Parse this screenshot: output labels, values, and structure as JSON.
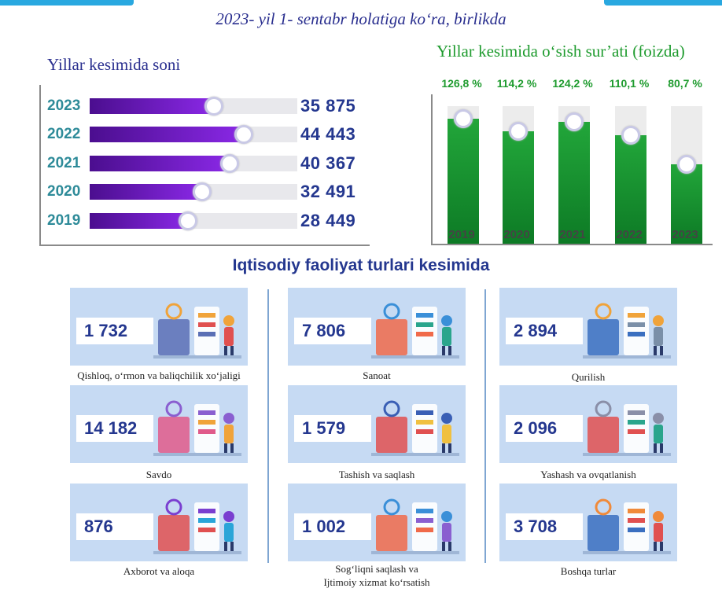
{
  "subtitle": "2023- yil 1- sentabr holatiga ko‘ra, birlikda",
  "colors": {
    "bar_fill": "#7a22d6",
    "growth_fill": "#129a2e",
    "title_blue": "#2a2f8f",
    "growth_title": "#1e9b2e",
    "tile_bg": "#c6daf3"
  },
  "chart_data": [
    {
      "type": "bar",
      "orientation": "horizontal",
      "title": "Yillar kesimida soni",
      "categories": [
        "2023",
        "2022",
        "2021",
        "2020",
        "2019"
      ],
      "values": [
        35875,
        44443,
        40367,
        32491,
        28449
      ],
      "value_labels": [
        "35 875",
        "44 443",
        "40 367",
        "32 491",
        "28 449"
      ]
    },
    {
      "type": "bar",
      "title": "Yillar kesimida o‘sish sur’ati (foizda)",
      "categories": [
        "2019",
        "2020",
        "2021",
        "2022",
        "2023"
      ],
      "values": [
        126.8,
        114.2,
        124.2,
        110.1,
        80.7
      ],
      "value_labels": [
        "126,8 %",
        "114,2 %",
        "124,2 %",
        "110,1 %",
        "80,7 %"
      ]
    }
  ],
  "sectors": {
    "title": "Iqtisodiy faoliyat turlari kesimida",
    "items": [
      {
        "value": "1 732",
        "label": "Qishloq, o‘rmon va baliqchilik xo‘jaligi",
        "icon": "agriculture-illustration"
      },
      {
        "value": "7 806",
        "label": "Sanoat",
        "icon": "industry-illustration"
      },
      {
        "value": "2 894",
        "label": "Qurilish",
        "icon": "construction-illustration"
      },
      {
        "value": "14 182",
        "label": "Savdo",
        "icon": "trade-illustration"
      },
      {
        "value": "1 579",
        "label": "Tashish va saqlash",
        "icon": "transport-illustration"
      },
      {
        "value": "2 096",
        "label": "Yashash va ovqatlanish",
        "icon": "hospitality-illustration"
      },
      {
        "value": "876",
        "label": "Axborot va aloqa",
        "icon": "it-illustration"
      },
      {
        "value": "1 002",
        "label": "Sog‘liqni saqlash va",
        "label2": "Ijtimoiy xizmat ko‘rsatish",
        "icon": "health-illustration"
      },
      {
        "value": "3 708",
        "label": "Boshqa turlar",
        "icon": "other-illustration"
      }
    ]
  }
}
